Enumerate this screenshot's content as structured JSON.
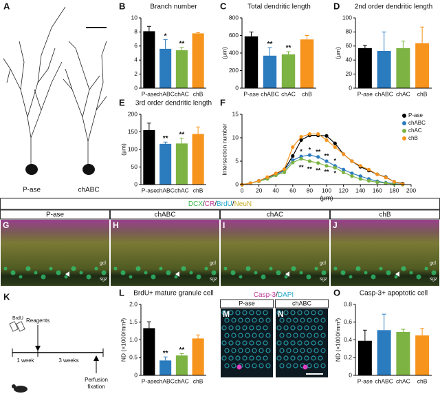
{
  "neurons": {
    "letter": "A",
    "labels": [
      "P-ase",
      "chABC"
    ]
  },
  "chart_data": [
    {
      "type": "bar",
      "panel": "B",
      "title": "Branch number",
      "categories": [
        "P-ase",
        "chABC",
        "chAC",
        "chB"
      ],
      "values": [
        8.1,
        5.6,
        5.4,
        7.8
      ],
      "errors": [
        0.7,
        1.3,
        0.4,
        0.1
      ],
      "significance": [
        null,
        "*",
        "**",
        null
      ],
      "colors": [
        "#000000",
        "#2b7bbf",
        "#7cb342",
        "#f7941d"
      ],
      "ylim": [
        0,
        10
      ],
      "yticks": [
        0,
        2,
        4,
        6,
        8,
        10
      ]
    },
    {
      "type": "bar",
      "panel": "C",
      "title": "Total dendritic length",
      "ylabel": "(μm)",
      "categories": [
        "P-ase",
        "chABC",
        "chAC",
        "chB"
      ],
      "values": [
        590,
        370,
        385,
        555
      ],
      "errors": [
        50,
        90,
        30,
        45
      ],
      "significance": [
        null,
        "**",
        "**",
        null
      ],
      "colors": [
        "#000000",
        "#2b7bbf",
        "#7cb342",
        "#f7941d"
      ],
      "ylim": [
        0,
        800
      ],
      "yticks": [
        0,
        200,
        400,
        600,
        800
      ]
    },
    {
      "type": "bar",
      "panel": "D",
      "title": "2nd order dendritic length",
      "ylabel": "(μm)",
      "categories": [
        "P-ase",
        "chABC",
        "chAC",
        "chB"
      ],
      "values": [
        57,
        53,
        57,
        64
      ],
      "errors": [
        4,
        27,
        10,
        23
      ],
      "significance": [
        null,
        null,
        null,
        null
      ],
      "colors": [
        "#000000",
        "#2b7bbf",
        "#7cb342",
        "#f7941d"
      ],
      "ylim": [
        0,
        100
      ],
      "yticks": [
        0,
        20,
        40,
        60,
        80,
        100
      ]
    },
    {
      "type": "bar",
      "panel": "E",
      "title": "3rd order dendritic length",
      "ylabel": "(μm)",
      "categories": [
        "P-ase",
        "chABC",
        "chAC",
        "chB"
      ],
      "values": [
        155,
        116,
        117,
        144
      ],
      "errors": [
        20,
        5,
        15,
        20
      ],
      "significance": [
        null,
        "**",
        "**",
        null
      ],
      "colors": [
        "#000000",
        "#2b7bbf",
        "#7cb342",
        "#f7941d"
      ],
      "ylim": [
        0,
        200
      ],
      "yticks": [
        0,
        50,
        100,
        150,
        200
      ]
    },
    {
      "type": "line",
      "panel": "F",
      "xlabel": "(μm)",
      "ylabel": "Intersection number",
      "x": [
        0,
        10,
        20,
        30,
        40,
        50,
        60,
        70,
        80,
        90,
        100,
        110,
        120,
        130,
        140,
        150,
        160,
        170,
        180,
        190
      ],
      "series": [
        {
          "name": "P-ase",
          "color": "#000000",
          "values": [
            0,
            0.3,
            0.8,
            1.5,
            2.3,
            3.2,
            6.1,
            9.5,
            10.5,
            10.5,
            10.4,
            8.8,
            6.5,
            5,
            3.8,
            3,
            2.2,
            1.6,
            0.6,
            0.2
          ]
        },
        {
          "name": "chABC",
          "color": "#2b7bbf",
          "values": [
            0,
            0.3,
            0.8,
            1.3,
            2,
            3,
            5.2,
            6,
            6.3,
            5.9,
            5,
            4,
            3.2,
            2.4,
            1.8,
            1.2,
            0.7,
            0.4,
            0.2,
            0
          ]
        },
        {
          "name": "chAC",
          "color": "#7cb342",
          "values": [
            0,
            0.3,
            0.7,
            1.2,
            2,
            2.6,
            4.7,
            5.5,
            5,
            4.6,
            4,
            3.6,
            2.6,
            1.8,
            1.2,
            0.8,
            0.5,
            0.3,
            0.1,
            0
          ]
        },
        {
          "name": "chB",
          "color": "#f7941d",
          "values": [
            0,
            0.3,
            0.8,
            1.6,
            2.4,
            3.3,
            8,
            10.2,
            10.8,
            10.8,
            9.5,
            8,
            6.5,
            5,
            4,
            3.2,
            2.2,
            1.5,
            0.6,
            0.1
          ]
        }
      ],
      "annotations": [
        {
          "x": 70,
          "y": 7.0,
          "text": "*",
          "color": "#2b7bbf"
        },
        {
          "x": 80,
          "y": 7.3,
          "text": "*",
          "color": "#2b7bbf"
        },
        {
          "x": 90,
          "y": 6.9,
          "text": "**",
          "color": "#2b7bbf"
        },
        {
          "x": 100,
          "y": 6.0,
          "text": "**",
          "color": "#2b7bbf"
        },
        {
          "x": 110,
          "y": 5.0,
          "text": "*",
          "color": "#2b7bbf"
        },
        {
          "x": 70,
          "y": 3.6,
          "text": "**",
          "color": "#7cb342"
        },
        {
          "x": 80,
          "y": 3.2,
          "text": "**",
          "color": "#7cb342"
        },
        {
          "x": 90,
          "y": 2.9,
          "text": "**",
          "color": "#7cb342"
        },
        {
          "x": 100,
          "y": 2.6,
          "text": "**",
          "color": "#7cb342"
        },
        {
          "x": 110,
          "y": 2.3,
          "text": "*",
          "color": "#7cb342"
        }
      ],
      "xlim": [
        0,
        200
      ],
      "xticks": [
        0,
        20,
        40,
        60,
        80,
        100,
        120,
        140,
        160,
        180,
        200
      ],
      "ylim": [
        0,
        15
      ],
      "yticks": [
        0,
        5,
        10,
        15
      ],
      "legend": "top-right"
    },
    {
      "type": "bar",
      "panel": "L",
      "title": "BrdU+ mature granule cell",
      "ylabel": "ND (×1000/mm³)",
      "categories": [
        "P-ase",
        "chABC",
        "chAC",
        "chB"
      ],
      "values": [
        1.33,
        0.42,
        0.56,
        1.04
      ],
      "errors": [
        0.18,
        0.1,
        0.05,
        0.1
      ],
      "significance": [
        null,
        "**",
        "**",
        null
      ],
      "colors": [
        "#000000",
        "#2b7bbf",
        "#7cb342",
        "#f7941d"
      ],
      "ylim": [
        0,
        2
      ],
      "yticks": [
        0,
        0.5,
        {
          "value": 1,
          "label": "1.0"
        },
        1.5,
        {
          "value": 2,
          "label": "2.0"
        }
      ]
    },
    {
      "type": "bar",
      "panel": "O",
      "title": "Casp-3+ apoptotic cell",
      "ylabel": "ND (×1000/mm³)",
      "categories": [
        "P-ase",
        "chABC",
        "chAC",
        "chB"
      ],
      "values": [
        0.39,
        0.51,
        0.49,
        0.45
      ],
      "errors": [
        0.12,
        0.18,
        0.03,
        0.08
      ],
      "significance": [
        null,
        null,
        null,
        null
      ],
      "colors": [
        "#000000",
        "#2b7bbf",
        "#7cb342",
        "#f7941d"
      ],
      "ylim": [
        0,
        0.8
      ],
      "yticks": [
        0,
        0.2,
        0.4,
        0.6,
        0.8
      ]
    }
  ],
  "micrographs": {
    "stains": [
      "DCX",
      "CR",
      "BrdU",
      "NeuN"
    ],
    "separator": "/",
    "panels": [
      {
        "letter": "G",
        "label": "P-ase"
      },
      {
        "letter": "H",
        "label": "chABC"
      },
      {
        "letter": "I",
        "label": "chAC"
      },
      {
        "letter": "J",
        "label": "chB"
      }
    ],
    "layers": [
      "gcl",
      "sgz"
    ]
  },
  "timeline": {
    "letter": "K",
    "marker": "BrdU",
    "treatment": "Reagents",
    "periods": [
      "1 week",
      "3 weeks"
    ],
    "end": [
      "Perfusion",
      "fixation"
    ]
  },
  "casp": {
    "stains": [
      "Casp-3",
      "DAPI"
    ],
    "separator": "/",
    "panels": [
      {
        "letter": "M",
        "label": "P-ase"
      },
      {
        "letter": "N",
        "label": "chABC"
      }
    ]
  }
}
